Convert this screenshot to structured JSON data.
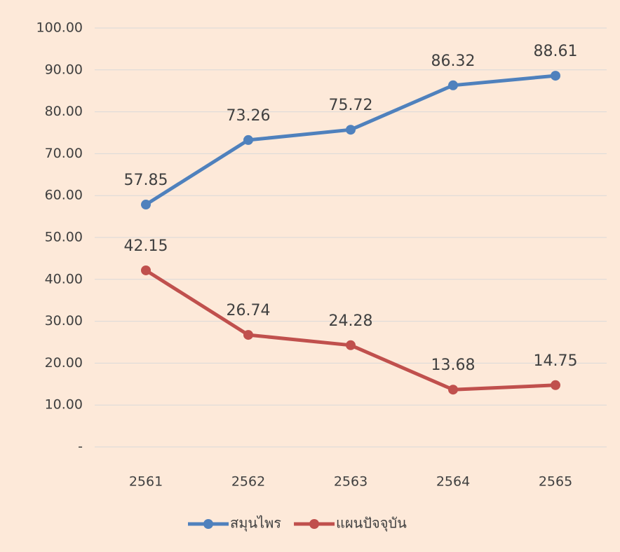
{
  "chart_data": {
    "type": "line",
    "categories": [
      "2561",
      "2562",
      "2563",
      "2564",
      "2565"
    ],
    "series": [
      {
        "name": "สมุนไพร",
        "color": "#4f81bd",
        "values": [
          57.85,
          73.26,
          75.72,
          86.32,
          88.61
        ]
      },
      {
        "name": "แผนปัจจุบัน",
        "color": "#c0504d",
        "values": [
          42.15,
          26.74,
          24.28,
          13.68,
          14.75
        ]
      }
    ],
    "ylim": [
      0,
      100
    ],
    "yticks": [
      {
        "value": 0,
        "label": "-"
      },
      {
        "value": 10,
        "label": "10.00"
      },
      {
        "value": 20,
        "label": "20.00"
      },
      {
        "value": 30,
        "label": "30.00"
      },
      {
        "value": 40,
        "label": "40.00"
      },
      {
        "value": 50,
        "label": "50.00"
      },
      {
        "value": 60,
        "label": "60.00"
      },
      {
        "value": 70,
        "label": "70.00"
      },
      {
        "value": 80,
        "label": "80.00"
      },
      {
        "value": 90,
        "label": "90.00"
      },
      {
        "value": 100,
        "label": "100.00"
      }
    ],
    "grid": true,
    "legend": "bottom"
  }
}
